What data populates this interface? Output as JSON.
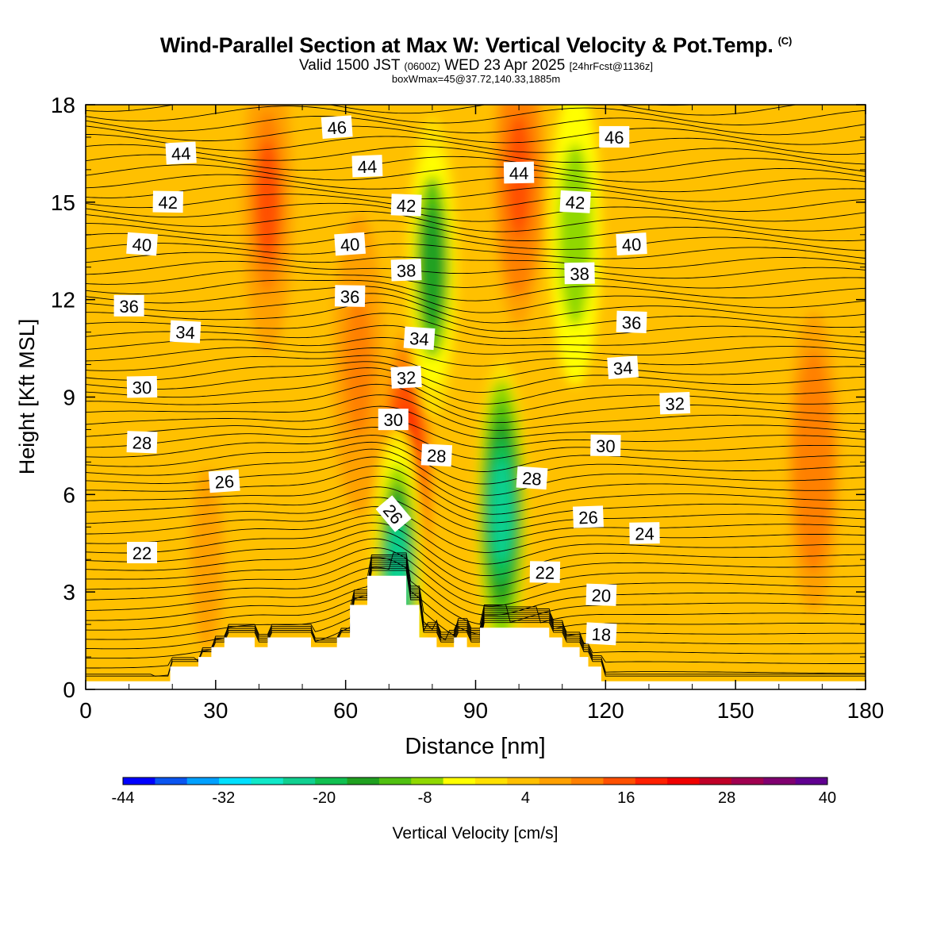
{
  "header": {
    "title": "Wind-Parallel Section at Max W: Vertical Velocity & Pot.Temp.",
    "copyright": "(C)",
    "subtitle_a": "Valid 1500 JST",
    "subtitle_b": "(0600Z)",
    "subtitle_c": "WED 23 Apr 2025",
    "subtitle_d": "[24hrFcst@1136z]",
    "subtitle_line3": "boxWmax=45@37.72,140.33,1885m"
  },
  "chart_data": {
    "type": "heatmap",
    "title": "Wind-Parallel Section at Max W: Vertical Velocity & Pot.Temp.",
    "xlabel": "Distance [nm]",
    "ylabel": "Height [Kft MSL]",
    "xlim": [
      0,
      180
    ],
    "ylim": [
      0,
      18
    ],
    "x_ticks": [
      "0",
      "30",
      "60",
      "90",
      "120",
      "150",
      "180"
    ],
    "y_ticks": [
      "0",
      "3",
      "6",
      "9",
      "12",
      "15",
      "18"
    ],
    "colorbar": {
      "label": "Vertical Velocity [cm/s]",
      "ticks": [
        "-44",
        "-32",
        "-20",
        "-8",
        "4",
        "16",
        "28",
        "40"
      ],
      "min": -44,
      "max": 40,
      "colors": [
        "#0000ff",
        "#0a55f0",
        "#00a0ff",
        "#00e0ff",
        "#10e8c8",
        "#10d090",
        "#10c050",
        "#20a020",
        "#50c010",
        "#90d800",
        "#ffff00",
        "#ffe000",
        "#ffc000",
        "#ffa000",
        "#ff8000",
        "#ff5000",
        "#ff2000",
        "#f00000",
        "#c00028",
        "#a00050",
        "#800070",
        "#600090"
      ]
    },
    "vertical_velocity_field": {
      "background_cm_s": 3,
      "features": [
        {
          "x": 100,
          "y": 15.8,
          "w": 16,
          "name": "updraft-upper-right-of-ridge"
        },
        {
          "x": 74,
          "y": 6.5,
          "w": 24,
          "name": "updraft-lee-of-ridge"
        },
        {
          "x": 42,
          "y": 15,
          "w": 14,
          "name": "updraft-upper-left"
        },
        {
          "x": 63,
          "y": 10,
          "w": 12,
          "name": "updraft-mid-left"
        },
        {
          "x": 80,
          "y": 13,
          "w": -14,
          "name": "downdraft-upper-center"
        },
        {
          "x": 96,
          "y": 5.5,
          "w": -24,
          "name": "downdraft-lower-center"
        },
        {
          "x": 72,
          "y": 3.5,
          "w": -22,
          "name": "downdraft-ridge-crest"
        },
        {
          "x": 113,
          "y": 14,
          "w": -8,
          "name": "downdraft-upper-right"
        },
        {
          "x": 168,
          "y": 7,
          "w": 13,
          "name": "updraft-far-right"
        },
        {
          "x": 28,
          "y": 4,
          "w": 8,
          "name": "updraft-low-left"
        }
      ]
    },
    "potential_temperature_contours": {
      "interval": 1,
      "labels": [
        {
          "text": "46",
          "x": 58,
          "y": 17.3
        },
        {
          "text": "44",
          "x": 22,
          "y": 16.5
        },
        {
          "text": "44",
          "x": 65,
          "y": 16.1
        },
        {
          "text": "44",
          "x": 100,
          "y": 15.9
        },
        {
          "text": "46",
          "x": 122,
          "y": 17.0
        },
        {
          "text": "42",
          "x": 19,
          "y": 15.0
        },
        {
          "text": "42",
          "x": 74,
          "y": 14.9
        },
        {
          "text": "42",
          "x": 113,
          "y": 15.0
        },
        {
          "text": "40",
          "x": 13,
          "y": 13.7
        },
        {
          "text": "40",
          "x": 61,
          "y": 13.7
        },
        {
          "text": "40",
          "x": 126,
          "y": 13.7
        },
        {
          "text": "38",
          "x": 74,
          "y": 12.9
        },
        {
          "text": "38",
          "x": 114,
          "y": 12.8
        },
        {
          "text": "36",
          "x": 10,
          "y": 11.8
        },
        {
          "text": "36",
          "x": 61,
          "y": 12.1
        },
        {
          "text": "36",
          "x": 126,
          "y": 11.3
        },
        {
          "text": "34",
          "x": 23,
          "y": 11.0
        },
        {
          "text": "34",
          "x": 77,
          "y": 10.8
        },
        {
          "text": "34",
          "x": 124,
          "y": 9.9
        },
        {
          "text": "32",
          "x": 74,
          "y": 9.6
        },
        {
          "text": "32",
          "x": 136,
          "y": 8.8
        },
        {
          "text": "30",
          "x": 13,
          "y": 9.3
        },
        {
          "text": "30",
          "x": 71,
          "y": 8.3
        },
        {
          "text": "30",
          "x": 120,
          "y": 7.5
        },
        {
          "text": "28",
          "x": 13,
          "y": 7.6
        },
        {
          "text": "28",
          "x": 81,
          "y": 7.2
        },
        {
          "text": "28",
          "x": 103,
          "y": 6.5
        },
        {
          "text": "26",
          "x": 32,
          "y": 6.4
        },
        {
          "text": "26",
          "x": 71,
          "y": 5.4
        },
        {
          "text": "26",
          "x": 116,
          "y": 5.3
        },
        {
          "text": "24",
          "x": 129,
          "y": 4.8
        },
        {
          "text": "22",
          "x": 13,
          "y": 4.2
        },
        {
          "text": "22",
          "x": 106,
          "y": 3.6
        },
        {
          "text": "20",
          "x": 119,
          "y": 2.9
        },
        {
          "text": "18",
          "x": 119,
          "y": 1.7
        }
      ]
    },
    "terrain_nm_kft": [
      [
        0,
        0.25
      ],
      [
        19.5,
        0.7
      ],
      [
        26,
        1.0
      ],
      [
        29,
        1.3
      ],
      [
        32,
        1.6
      ],
      [
        39,
        1.3
      ],
      [
        42,
        1.6
      ],
      [
        52,
        1.3
      ],
      [
        58,
        1.6
      ],
      [
        61,
        2.6
      ],
      [
        65,
        3.5
      ],
      [
        74,
        2.6
      ],
      [
        77,
        1.6
      ],
      [
        81,
        1.3
      ],
      [
        85,
        1.6
      ],
      [
        88,
        1.3
      ],
      [
        91,
        1.9
      ],
      [
        107,
        1.6
      ],
      [
        110,
        1.3
      ],
      [
        114,
        1.0
      ],
      [
        116,
        0.7
      ],
      [
        119,
        0.25
      ],
      [
        180,
        0.25
      ]
    ]
  }
}
